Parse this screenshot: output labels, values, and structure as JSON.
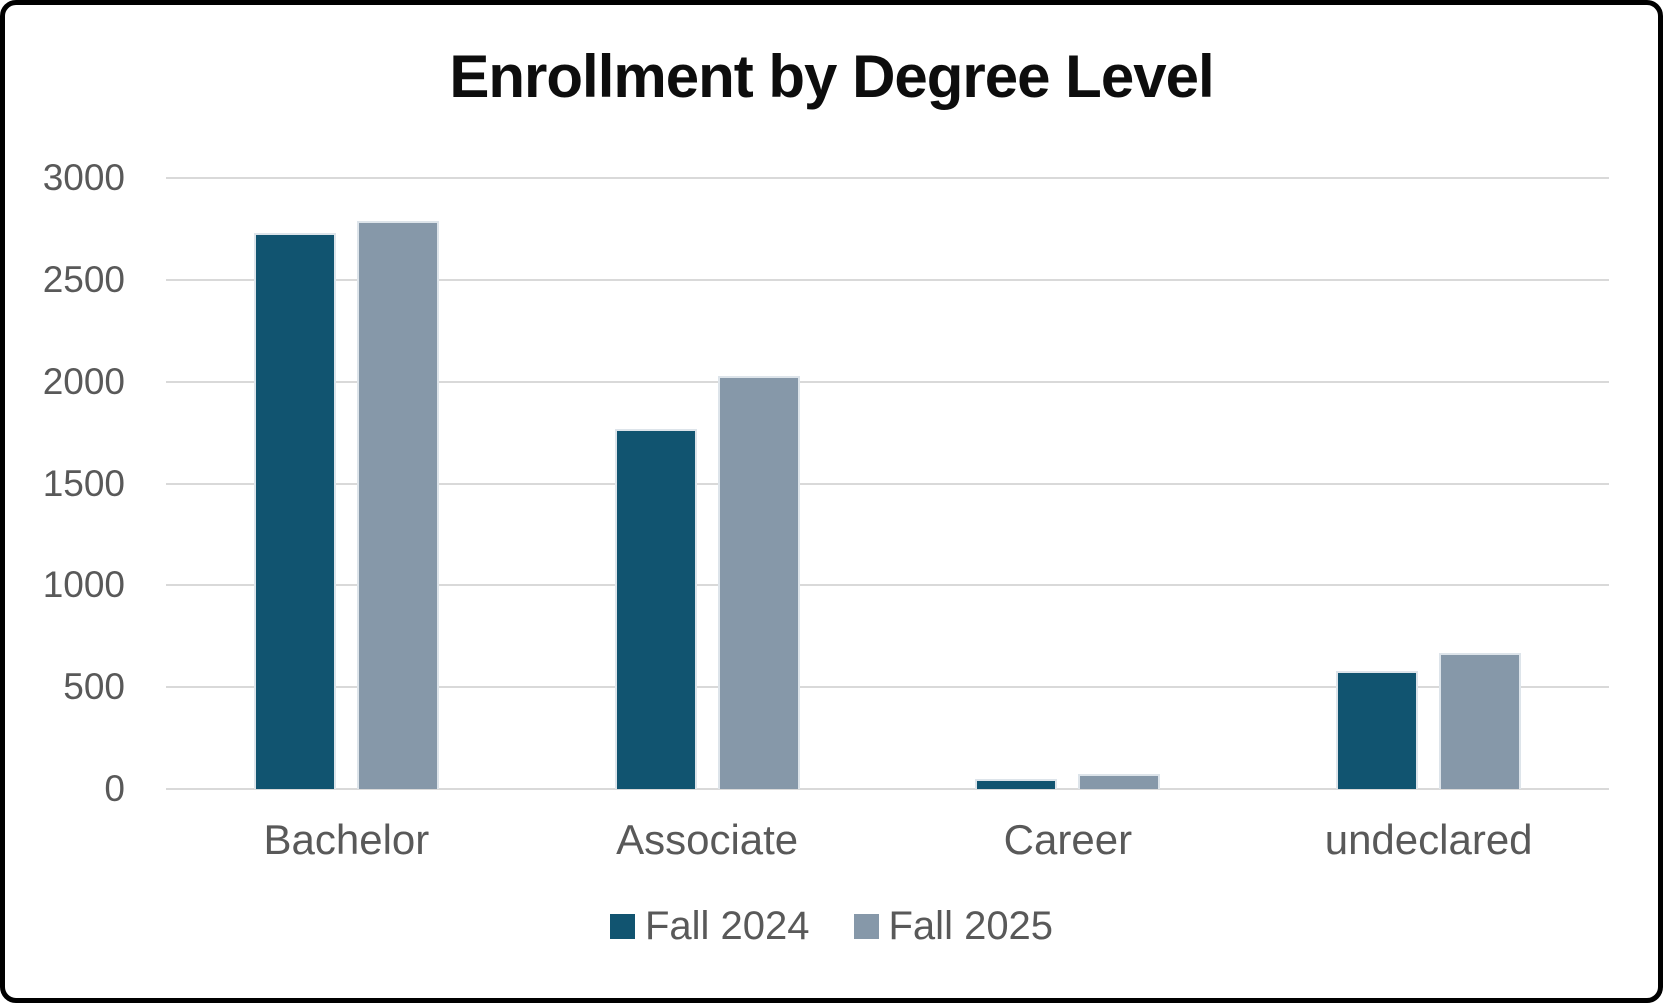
{
  "chart_data": {
    "type": "bar",
    "title": "Enrollment by Degree Level",
    "categories": [
      "Bachelor",
      "Associate",
      "Career",
      "undeclared"
    ],
    "series": [
      {
        "name": "Fall 2024",
        "color": "#115470",
        "values": [
          2730,
          1770,
          50,
          580
        ]
      },
      {
        "name": "Fall 2025",
        "color": "#8698a9",
        "values": [
          2790,
          2030,
          75,
          670
        ]
      }
    ],
    "xlabel": "",
    "ylabel": "",
    "ylim": [
      0,
      3000
    ],
    "yticks": [
      0,
      500,
      1000,
      1500,
      2000,
      2500,
      3000
    ],
    "grid": true,
    "legend_position": "bottom",
    "colors": {
      "axis_text": "#595959",
      "gridline": "#d9d9d9",
      "title": "#0d0d0d",
      "background": "#ffffff",
      "frame_border": "#000000"
    }
  }
}
